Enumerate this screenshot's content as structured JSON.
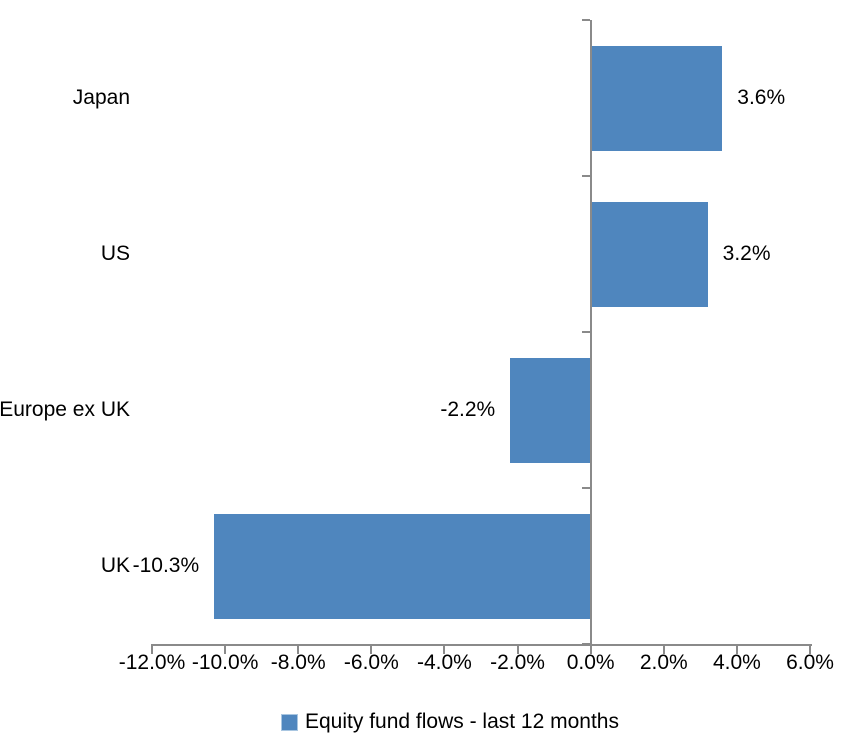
{
  "chart_data": {
    "type": "bar",
    "orientation": "horizontal",
    "title": "",
    "categories": [
      "Japan",
      "US",
      "Europe ex UK",
      "UK"
    ],
    "series": [
      {
        "name": "Equity fund flows - last 12 months",
        "values": [
          3.6,
          3.2,
          -2.2,
          -10.3
        ],
        "value_labels": [
          "3.6%",
          "3.2%",
          "-2.2%",
          "-10.3%"
        ]
      }
    ],
    "xlabel": "",
    "ylabel": "",
    "xlim": [
      -12,
      6
    ],
    "x_ticks": [
      -12,
      -10,
      -8,
      -6,
      -4,
      -2,
      0,
      2,
      4,
      6
    ],
    "x_tick_labels": [
      "-12.0%",
      "-10.0%",
      "-8.0%",
      "-6.0%",
      "-4.0%",
      "-2.0%",
      "0.0%",
      "2.0%",
      "4.0%",
      "6.0%"
    ],
    "grid": false,
    "legend_position": "bottom",
    "legend": [
      {
        "label": "Equity fund flows - last 12 months",
        "color": "#4F86BE"
      }
    ],
    "colors": {
      "bar": "#4F86BE",
      "legend_marker_border": "#A9C6E1",
      "axis": "#8A8A8A",
      "text": "#000000",
      "background": "#FFFFFF"
    }
  }
}
